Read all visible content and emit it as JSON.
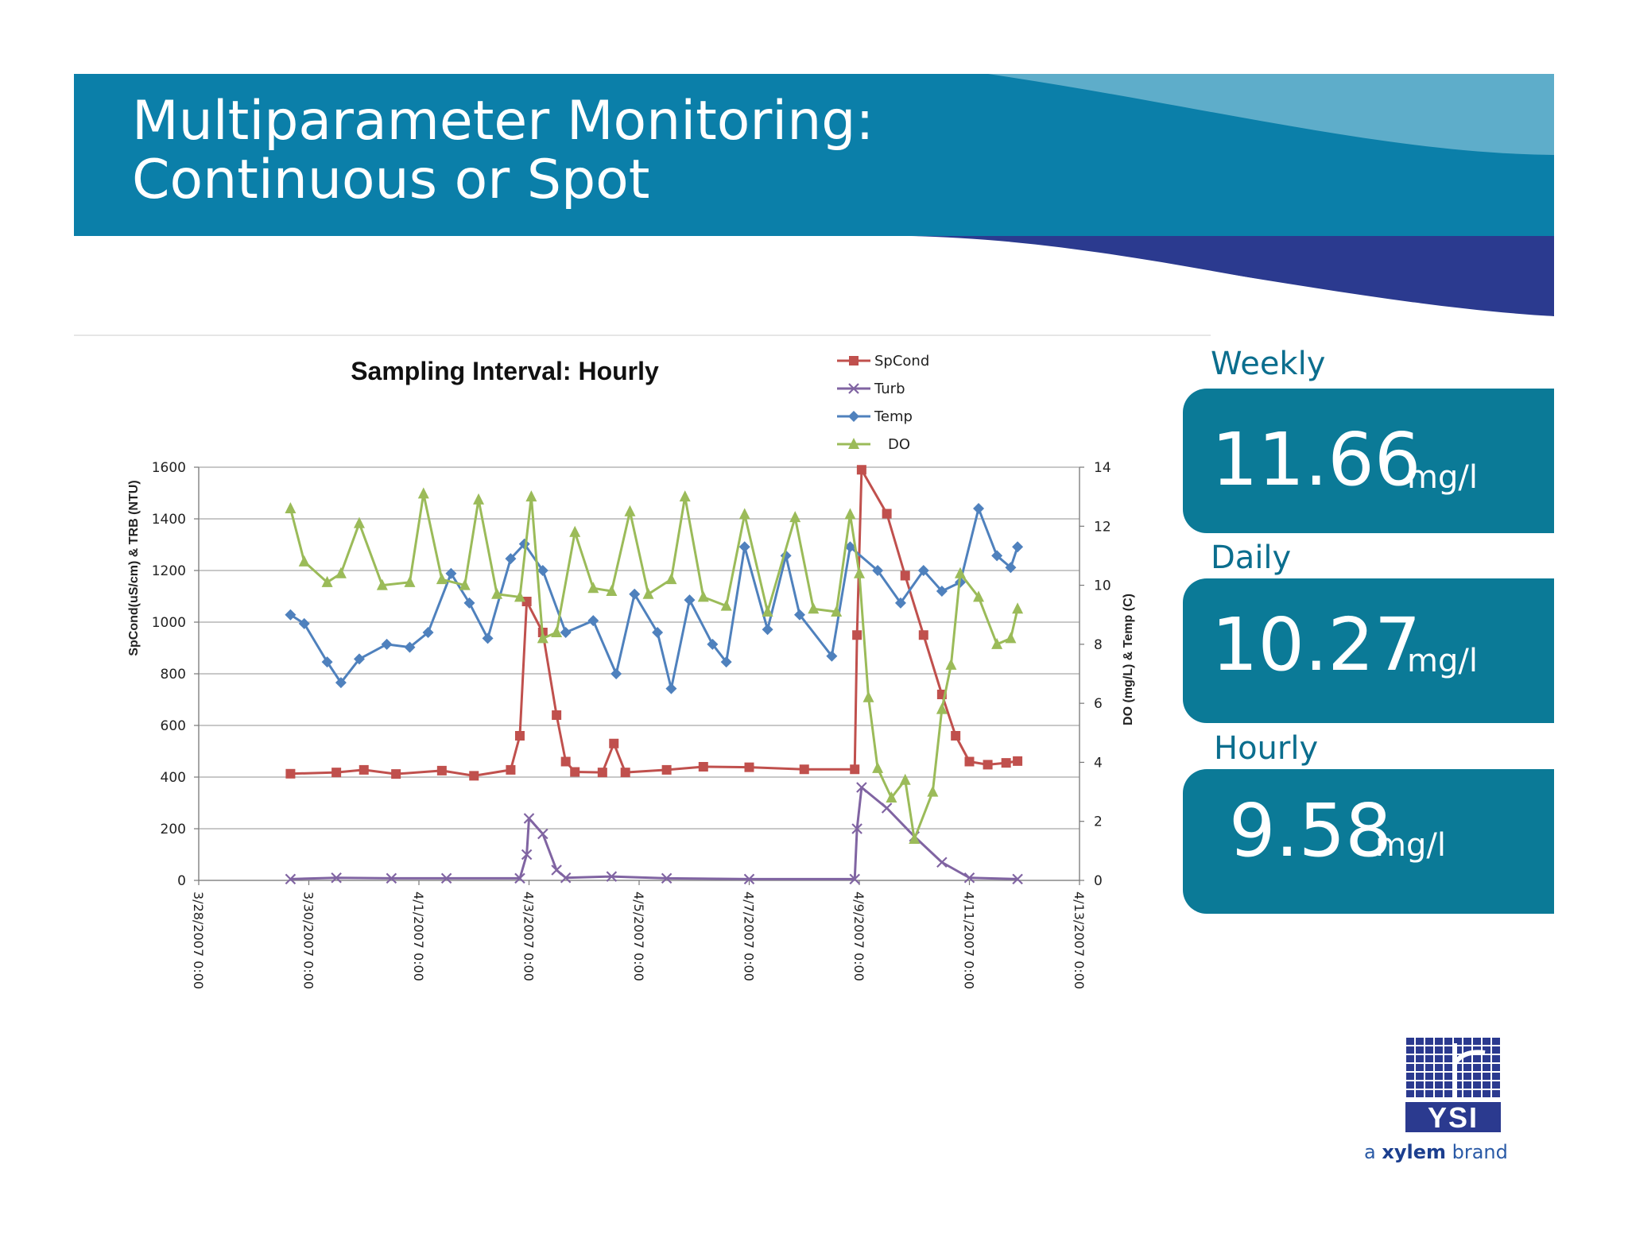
{
  "slide": {
    "title_line1": "Multiparameter Monitoring:",
    "title_line2": "Continuous or Spot"
  },
  "stats": [
    {
      "label": "Weekly",
      "value": "11.66",
      "unit": "mg/l"
    },
    {
      "label": "Daily",
      "value": "10.27",
      "unit": "mg/l"
    },
    {
      "label": "Hourly",
      "value": "9.58",
      "unit": "mg/l"
    }
  ],
  "branding": {
    "logo_text": "YSI",
    "tagline_prefix": "a ",
    "tagline_brand": "xylem",
    "tagline_suffix": " brand",
    "brand_colors": {
      "teal": "#0b7a97",
      "navy": "#2b3a8f",
      "light_blue": "#5aaecb"
    }
  },
  "chart_data": {
    "type": "line",
    "title": "Sampling Interval: Hourly",
    "ylabel": "SpCond(uS/cm) & TRB (NTU)",
    "y2label": "DO (mg/L) & Temp (C)",
    "ylim": [
      0,
      1600
    ],
    "y2lim": [
      0,
      14
    ],
    "yticks": [
      "0",
      "200",
      "400",
      "600",
      "800",
      "1000",
      "1200",
      "1400",
      "1600"
    ],
    "y2ticks": [
      "0",
      "2",
      "4",
      "6",
      "8",
      "10",
      "12",
      "14"
    ],
    "x_unit": "days",
    "xticks": [
      "3/28/2007 0:00",
      "3/30/2007 0:00",
      "4/1/2007 0:00",
      "4/3/2007 0:00",
      "4/5/2007 0:00",
      "4/7/2007 0:00",
      "4/9/2007 0:00",
      "4/11/2007 0:00",
      "4/13/2007 0:00"
    ],
    "xlim": [
      "3/28/2007 0:00",
      "4/13/2007 0:00"
    ],
    "grid": "horizontal",
    "legend_position": "top-right",
    "series": [
      {
        "name": "SpCond",
        "axis": "left",
        "color": "#c0504d",
        "marker": "square",
        "points": [
          [
            "3/29/2007 16:00",
            413
          ],
          [
            "3/30/2007 12:00",
            418
          ],
          [
            "3/31/2007 0:00",
            428
          ],
          [
            "3/31/2007 14:00",
            412
          ],
          [
            "4/1/2007 10:00",
            425
          ],
          [
            "4/2/2007 0:00",
            405
          ],
          [
            "4/2/2007 16:00",
            428
          ],
          [
            "4/2/2007 20:00",
            560
          ],
          [
            "4/2/2007 23:00",
            1080
          ],
          [
            "4/3/2007 6:00",
            960
          ],
          [
            "4/3/2007 12:00",
            640
          ],
          [
            "4/3/2007 16:00",
            460
          ],
          [
            "4/3/2007 20:00",
            420
          ],
          [
            "4/4/2007 8:00",
            418
          ],
          [
            "4/4/2007 13:00",
            530
          ],
          [
            "4/4/2007 18:00",
            418
          ],
          [
            "4/5/2007 12:00",
            428
          ],
          [
            "4/6/2007 4:00",
            440
          ],
          [
            "4/7/2007 0:00",
            438
          ],
          [
            "4/8/2007 0:00",
            430
          ],
          [
            "4/8/2007 22:00",
            430
          ],
          [
            "4/8/2007 23:00",
            950
          ],
          [
            "4/9/2007 1:00",
            1590
          ],
          [
            "4/9/2007 12:00",
            1420
          ],
          [
            "4/9/2007 20:00",
            1180
          ],
          [
            "4/10/2007 4:00",
            950
          ],
          [
            "4/10/2007 12:00",
            720
          ],
          [
            "4/10/2007 18:00",
            560
          ],
          [
            "4/11/2007 0:00",
            460
          ],
          [
            "4/11/2007 8:00",
            448
          ],
          [
            "4/11/2007 16:00",
            455
          ],
          [
            "4/11/2007 21:00",
            462
          ]
        ]
      },
      {
        "name": "Turb",
        "axis": "left",
        "color": "#8064a2",
        "marker": "x",
        "points": [
          [
            "3/29/2007 16:00",
            5
          ],
          [
            "3/30/2007 12:00",
            10
          ],
          [
            "3/31/2007 12:00",
            8
          ],
          [
            "4/1/2007 12:00",
            8
          ],
          [
            "4/2/2007 20:00",
            8
          ],
          [
            "4/2/2007 23:00",
            100
          ],
          [
            "4/3/2007 0:00",
            240
          ],
          [
            "4/3/2007 6:00",
            180
          ],
          [
            "4/3/2007 12:00",
            40
          ],
          [
            "4/3/2007 16:00",
            10
          ],
          [
            "4/4/2007 12:00",
            15
          ],
          [
            "4/5/2007 12:00",
            8
          ],
          [
            "4/7/2007 0:00",
            5
          ],
          [
            "4/8/2007 22:00",
            5
          ],
          [
            "4/8/2007 23:00",
            200
          ],
          [
            "4/9/2007 1:00",
            360
          ],
          [
            "4/9/2007 12:00",
            280
          ],
          [
            "4/10/2007 0:00",
            170
          ],
          [
            "4/10/2007 12:00",
            70
          ],
          [
            "4/11/2007 0:00",
            10
          ],
          [
            "4/11/2007 21:00",
            5
          ]
        ]
      },
      {
        "name": "Temp",
        "axis": "right",
        "color": "#4f81bd",
        "marker": "diamond",
        "points": [
          [
            "3/29/2007 16:00",
            9.0
          ],
          [
            "3/29/2007 22:00",
            8.7
          ],
          [
            "3/30/2007 8:00",
            7.4
          ],
          [
            "3/30/2007 14:00",
            6.7
          ],
          [
            "3/30/2007 22:00",
            7.5
          ],
          [
            "3/31/2007 10:00",
            8.0
          ],
          [
            "3/31/2007 20:00",
            7.9
          ],
          [
            "4/1/2007 4:00",
            8.4
          ],
          [
            "4/1/2007 14:00",
            10.4
          ],
          [
            "4/1/2007 22:00",
            9.4
          ],
          [
            "4/2/2007 6:00",
            8.2
          ],
          [
            "4/2/2007 16:00",
            10.9
          ],
          [
            "4/2/2007 22:00",
            11.4
          ],
          [
            "4/3/2007 6:00",
            10.5
          ],
          [
            "4/3/2007 16:00",
            8.4
          ],
          [
            "4/4/2007 4:00",
            8.8
          ],
          [
            "4/4/2007 14:00",
            7.0
          ],
          [
            "4/4/2007 22:00",
            9.7
          ],
          [
            "4/5/2007 8:00",
            8.4
          ],
          [
            "4/5/2007 14:00",
            6.5
          ],
          [
            "4/5/2007 22:00",
            9.5
          ],
          [
            "4/6/2007 8:00",
            8.0
          ],
          [
            "4/6/2007 14:00",
            7.4
          ],
          [
            "4/6/2007 22:00",
            11.3
          ],
          [
            "4/7/2007 8:00",
            8.5
          ],
          [
            "4/7/2007 16:00",
            11.0
          ],
          [
            "4/7/2007 22:00",
            9.0
          ],
          [
            "4/8/2007 12:00",
            7.6
          ],
          [
            "4/8/2007 20:00",
            11.3
          ],
          [
            "4/9/2007 8:00",
            10.5
          ],
          [
            "4/9/2007 18:00",
            9.4
          ],
          [
            "4/10/2007 4:00",
            10.5
          ],
          [
            "4/10/2007 12:00",
            9.8
          ],
          [
            "4/10/2007 20:00",
            10.1
          ],
          [
            "4/11/2007 4:00",
            12.6
          ],
          [
            "4/11/2007 12:00",
            11.0
          ],
          [
            "4/11/2007 18:00",
            10.6
          ],
          [
            "4/11/2007 21:00",
            11.3
          ]
        ]
      },
      {
        "name": "DO",
        "axis": "right",
        "color": "#9bbb59",
        "marker": "triangle",
        "points": [
          [
            "3/29/2007 16:00",
            12.6
          ],
          [
            "3/29/2007 22:00",
            10.8
          ],
          [
            "3/30/2007 8:00",
            10.1
          ],
          [
            "3/30/2007 14:00",
            10.4
          ],
          [
            "3/30/2007 22:00",
            12.1
          ],
          [
            "3/31/2007 8:00",
            10.0
          ],
          [
            "3/31/2007 20:00",
            10.1
          ],
          [
            "4/1/2007 2:00",
            13.1
          ],
          [
            "4/1/2007 10:00",
            10.2
          ],
          [
            "4/1/2007 20:00",
            10.0
          ],
          [
            "4/2/2007 2:00",
            12.9
          ],
          [
            "4/2/2007 10:00",
            9.7
          ],
          [
            "4/2/2007 20:00",
            9.6
          ],
          [
            "4/3/2007 1:00",
            13.0
          ],
          [
            "4/3/2007 6:00",
            8.2
          ],
          [
            "4/3/2007 12:00",
            8.4
          ],
          [
            "4/3/2007 20:00",
            11.8
          ],
          [
            "4/4/2007 4:00",
            9.9
          ],
          [
            "4/4/2007 12:00",
            9.8
          ],
          [
            "4/4/2007 20:00",
            12.5
          ],
          [
            "4/5/2007 4:00",
            9.7
          ],
          [
            "4/5/2007 14:00",
            10.2
          ],
          [
            "4/5/2007 20:00",
            13.0
          ],
          [
            "4/6/2007 4:00",
            9.6
          ],
          [
            "4/6/2007 14:00",
            9.3
          ],
          [
            "4/6/2007 22:00",
            12.4
          ],
          [
            "4/7/2007 8:00",
            9.1
          ],
          [
            "4/7/2007 20:00",
            12.3
          ],
          [
            "4/8/2007 4:00",
            9.2
          ],
          [
            "4/8/2007 14:00",
            9.1
          ],
          [
            "4/8/2007 20:00",
            12.4
          ],
          [
            "4/9/2007 0:00",
            10.4
          ],
          [
            "4/9/2007 4:00",
            6.2
          ],
          [
            "4/9/2007 8:00",
            3.8
          ],
          [
            "4/9/2007 14:00",
            2.8
          ],
          [
            "4/9/2007 20:00",
            3.4
          ],
          [
            "4/10/2007 0:00",
            1.4
          ],
          [
            "4/10/2007 8:00",
            3.0
          ],
          [
            "4/10/2007 12:00",
            5.8
          ],
          [
            "4/10/2007 16:00",
            7.3
          ],
          [
            "4/10/2007 20:00",
            10.4
          ],
          [
            "4/11/2007 4:00",
            9.6
          ],
          [
            "4/11/2007 12:00",
            8.0
          ],
          [
            "4/11/2007 18:00",
            8.2
          ],
          [
            "4/11/2007 21:00",
            9.2
          ]
        ]
      }
    ]
  }
}
